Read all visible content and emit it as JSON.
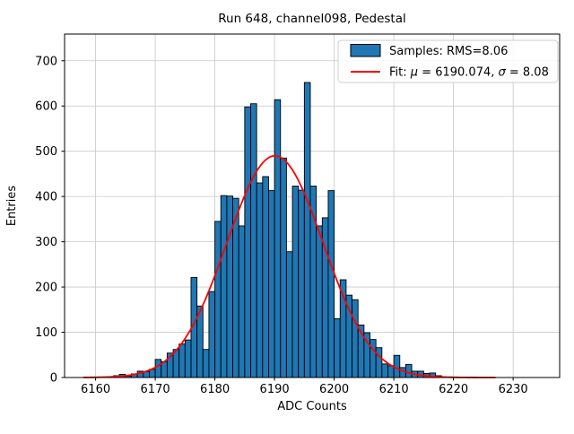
{
  "title": "Run 648, channel098, Pedestal",
  "chart_data": {
    "type": "bar",
    "subtype": "histogram",
    "title": "Run 648, channel098, Pedestal",
    "xlabel": "ADC Counts",
    "ylabel": "Entries",
    "xlim": [
      6154.8,
      6237.8
    ],
    "ylim": [
      0,
      759
    ],
    "xticks": [
      6160,
      6170,
      6180,
      6190,
      6200,
      6210,
      6220,
      6230
    ],
    "yticks": [
      0,
      100,
      200,
      300,
      400,
      500,
      600,
      700
    ],
    "grid": true,
    "grid_color": "#c8c8c8",
    "bar_color": "#1f77b4",
    "bar_edge_color": "#000000",
    "bins": {
      "start": 6163,
      "bin_width": 1,
      "counts": [
        4,
        7,
        3,
        8,
        14,
        13,
        18,
        40,
        35,
        54,
        62,
        74,
        83,
        221,
        158,
        62,
        190,
        345,
        402,
        401,
        396,
        335,
        598,
        605,
        430,
        444,
        413,
        614,
        485,
        278,
        423,
        414,
        652,
        423,
        335,
        353,
        413,
        130,
        216,
        182,
        172,
        116,
        99,
        84,
        66,
        30,
        26,
        49,
        22,
        29,
        14,
        14,
        9,
        10,
        4
      ]
    },
    "fit": {
      "type": "gaussian",
      "mu": 6190.074,
      "sigma": 8.08,
      "amplitude": 490,
      "color": "#ff0000",
      "x_range": [
        6158,
        6227
      ]
    },
    "legend": {
      "position": "upper right",
      "entries": [
        {
          "label": "Samples: RMS=8.06",
          "rms": 8.06,
          "swatch_color": "#1f77b4"
        },
        {
          "label": "Fit: μ = 6190.074, σ = 8.08",
          "parts": [
            {
              "text": "Fit: "
            },
            {
              "text": "μ"
            },
            {
              "text": " = 6190.074, "
            },
            {
              "text": "σ"
            },
            {
              "text": " = 8.08"
            }
          ],
          "line_color": "#ff0000"
        }
      ]
    }
  }
}
